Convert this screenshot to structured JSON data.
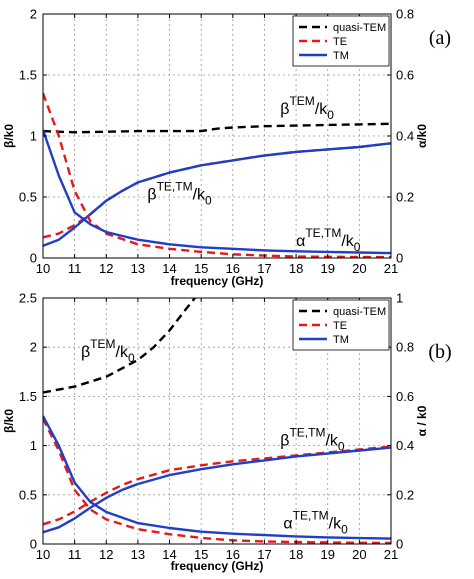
{
  "chart_data": [
    {
      "type": "line",
      "panel_label": "(a)",
      "xlabel": "frequency (GHz)",
      "ylabel": "β/k0",
      "ylabel_right": "α/k0",
      "xlim": [
        10,
        21
      ],
      "ylim": [
        0,
        2
      ],
      "ylim_right": [
        0,
        0.8
      ],
      "xticks": [
        "10",
        "11",
        "12",
        "13",
        "14",
        "15",
        "16",
        "17",
        "18",
        "19",
        "20",
        "21"
      ],
      "yticks": [
        "0",
        "0.5",
        "1",
        "1.5",
        "2"
      ],
      "yticks_right": [
        "0",
        "0.2",
        "0.4",
        "0.6",
        "0.8"
      ],
      "grid": true,
      "legend": {
        "placement": "top-right",
        "entries": [
          {
            "label": "quasi-TEM",
            "color": "#000000",
            "dash": "dashed"
          },
          {
            "label": "TE",
            "color": "#e31a1c",
            "dash": "dashed"
          },
          {
            "label": "TM",
            "color": "#1f3fc7",
            "dash": "solid"
          }
        ]
      },
      "series": [
        {
          "name": "quasi-TEM",
          "axis": "left",
          "color": "#000000",
          "dash": "dashed",
          "x": [
            10,
            11,
            12,
            13,
            14,
            15,
            15.5,
            16,
            17,
            18,
            19,
            20,
            21
          ],
          "y": [
            1.04,
            1.03,
            1.035,
            1.04,
            1.04,
            1.04,
            1.06,
            1.07,
            1.08,
            1.085,
            1.09,
            1.095,
            1.1
          ]
        },
        {
          "name": "TE",
          "axis": "left",
          "color": "#e31a1c",
          "dash": "dashed",
          "x": [
            10,
            10.5,
            11,
            11.5,
            12,
            12.5,
            13,
            14,
            15,
            16,
            17,
            18,
            19,
            20,
            21
          ],
          "y": [
            0.17,
            0.2,
            0.27,
            0.36,
            0.47,
            0.55,
            0.62,
            0.7,
            0.76,
            0.8,
            0.84,
            0.87,
            0.89,
            0.91,
            0.94
          ]
        },
        {
          "name": "TM",
          "axis": "left",
          "color": "#1f3fc7",
          "dash": "solid",
          "x": [
            10,
            10.5,
            11,
            11.5,
            12,
            12.5,
            13,
            14,
            15,
            16,
            17,
            18,
            19,
            20,
            21
          ],
          "y": [
            0.1,
            0.15,
            0.25,
            0.36,
            0.47,
            0.55,
            0.62,
            0.7,
            0.76,
            0.8,
            0.84,
            0.87,
            0.89,
            0.91,
            0.94
          ]
        },
        {
          "name": "TE",
          "axis": "right",
          "color": "#e31a1c",
          "dash": "dashed",
          "x": [
            10,
            10.5,
            11,
            11.5,
            12,
            13,
            14,
            15,
            16,
            17,
            18,
            19,
            20,
            21
          ],
          "y": [
            0.54,
            0.4,
            0.22,
            0.12,
            0.08,
            0.045,
            0.03,
            0.02,
            0.012,
            0.008,
            0.005,
            0.004,
            0.003,
            0.003
          ]
        },
        {
          "name": "TM",
          "axis": "right",
          "color": "#1f3fc7",
          "dash": "solid",
          "x": [
            10,
            10.5,
            11,
            11.5,
            12,
            13,
            14,
            15,
            16,
            17,
            18,
            19,
            20,
            21
          ],
          "y": [
            0.42,
            0.27,
            0.15,
            0.11,
            0.085,
            0.06,
            0.045,
            0.035,
            0.03,
            0.025,
            0.022,
            0.02,
            0.018,
            0.016
          ]
        }
      ],
      "annotations": [
        {
          "base": "β",
          "sup": "TEM",
          "tail": "/k",
          "sub": "0",
          "at": [
            17.5,
            1.18
          ]
        },
        {
          "base": "β",
          "sup": "TE,TM",
          "tail": "/k",
          "sub": "0",
          "at": [
            13.3,
            0.48
          ]
        },
        {
          "base": "α",
          "sup": "TE,TM",
          "tail": "/k",
          "sub": "0",
          "at": [
            18.0,
            0.1
          ]
        }
      ]
    },
    {
      "type": "line",
      "panel_label": "(b)",
      "xlabel": "frequency (GHz)",
      "ylabel": "β/k0",
      "ylabel_right": "α / k0",
      "xlim": [
        10,
        21
      ],
      "ylim": [
        0,
        2.5
      ],
      "ylim_right": [
        0,
        1
      ],
      "xticks": [
        "10",
        "11",
        "12",
        "13",
        "14",
        "15",
        "16",
        "17",
        "18",
        "19",
        "20",
        "21"
      ],
      "yticks": [
        "0",
        "0.5",
        "1",
        "1.5",
        "2",
        "2.5"
      ],
      "yticks_right": [
        "0",
        "0.2",
        "0.4",
        "0.6",
        "0.8",
        "1"
      ],
      "grid": true,
      "legend": {
        "placement": "top-right",
        "entries": [
          {
            "label": "quasi-TEM",
            "color": "#000000",
            "dash": "dashed"
          },
          {
            "label": "TE",
            "color": "#e31a1c",
            "dash": "dashed"
          },
          {
            "label": "TM",
            "color": "#1f3fc7",
            "dash": "solid"
          }
        ]
      },
      "series": [
        {
          "name": "quasi-TEM",
          "axis": "left",
          "color": "#000000",
          "dash": "dashed",
          "x": [
            10,
            11,
            12,
            13,
            13.5,
            14,
            14.5,
            14.8
          ],
          "y": [
            1.54,
            1.6,
            1.7,
            1.87,
            2.0,
            2.17,
            2.38,
            2.5
          ]
        },
        {
          "name": "TE",
          "axis": "left",
          "color": "#e31a1c",
          "dash": "dashed",
          "x": [
            10,
            10.5,
            11,
            11.5,
            12,
            12.5,
            13,
            14,
            15,
            16,
            17,
            18,
            19,
            20,
            21
          ],
          "y": [
            0.2,
            0.25,
            0.33,
            0.43,
            0.52,
            0.6,
            0.66,
            0.75,
            0.8,
            0.84,
            0.87,
            0.9,
            0.93,
            0.96,
            0.99
          ]
        },
        {
          "name": "TM",
          "axis": "left",
          "color": "#1f3fc7",
          "dash": "solid",
          "x": [
            10,
            10.5,
            11,
            11.5,
            12,
            12.5,
            13,
            14,
            15,
            16,
            17,
            18,
            19,
            20,
            21
          ],
          "y": [
            0.12,
            0.17,
            0.26,
            0.37,
            0.47,
            0.55,
            0.61,
            0.7,
            0.76,
            0.81,
            0.85,
            0.89,
            0.92,
            0.95,
            0.98
          ]
        },
        {
          "name": "TE",
          "axis": "right",
          "color": "#e31a1c",
          "dash": "dashed",
          "x": [
            10,
            10.5,
            11,
            11.5,
            12,
            13,
            14,
            15,
            16,
            17,
            18,
            19,
            20,
            21
          ],
          "y": [
            0.51,
            0.38,
            0.22,
            0.14,
            0.1,
            0.06,
            0.04,
            0.025,
            0.015,
            0.01,
            0.008,
            0.006,
            0.005,
            0.004
          ]
        },
        {
          "name": "TM",
          "axis": "right",
          "color": "#1f3fc7",
          "dash": "solid",
          "x": [
            10,
            10.5,
            11,
            11.5,
            12,
            13,
            14,
            15,
            16,
            17,
            18,
            19,
            20,
            21
          ],
          "y": [
            0.52,
            0.4,
            0.25,
            0.17,
            0.13,
            0.085,
            0.065,
            0.05,
            0.042,
            0.036,
            0.031,
            0.027,
            0.024,
            0.022
          ]
        }
      ],
      "annotations": [
        {
          "base": "β",
          "sup": "TEM",
          "tail": "/k",
          "sub": "0",
          "at": [
            11.2,
            1.9
          ]
        },
        {
          "base": "β",
          "sup": "TE,TM",
          "tail": "/k",
          "sub": "0",
          "at": [
            17.5,
            1.0
          ]
        },
        {
          "base": "α",
          "sup": "TE,TM",
          "tail": "/k",
          "sub": "0",
          "at": [
            17.6,
            0.16
          ]
        }
      ]
    }
  ]
}
